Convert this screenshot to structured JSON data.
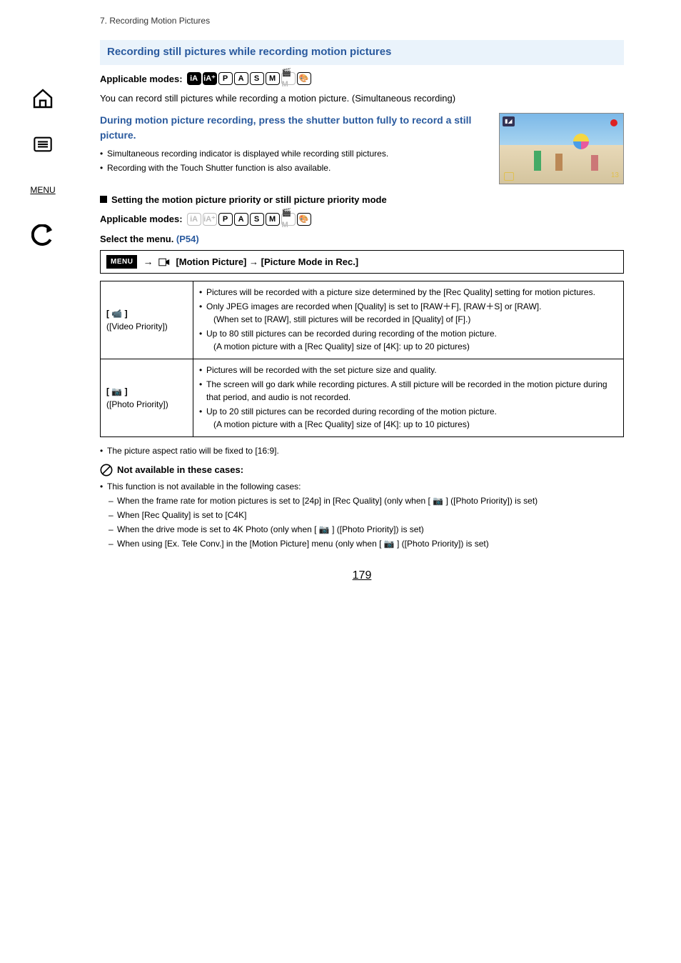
{
  "breadcrumb": "7. Recording Motion Pictures",
  "section_header": "Recording still pictures while recording motion pictures",
  "applicable_label": "Applicable modes:",
  "mode_icons_1": [
    {
      "label": "iA",
      "filled": true,
      "grey": false
    },
    {
      "label": "iA⁺",
      "filled": true,
      "grey": false
    },
    {
      "label": "P",
      "filled": false,
      "grey": false
    },
    {
      "label": "A",
      "filled": false,
      "grey": false
    },
    {
      "label": "S",
      "filled": false,
      "grey": false
    },
    {
      "label": "M",
      "filled": false,
      "grey": false
    },
    {
      "label": "🎬M",
      "filled": false,
      "grey": true
    },
    {
      "label": "🎨",
      "filled": false,
      "grey": false
    }
  ],
  "intro": "You can record still pictures while recording a motion picture. (Simultaneous recording)",
  "instruction_heading": "During motion picture recording, press the shutter button fully to record a still picture.",
  "instruction_bullets": [
    "Simultaneous recording indicator is displayed while recording still pictures.",
    "Recording with the Touch Shutter function is also available."
  ],
  "preview": {
    "counter": "13"
  },
  "subsection_title": "Setting the motion picture priority or still picture priority mode",
  "mode_icons_2": [
    {
      "label": "iA",
      "filled": false,
      "grey": true
    },
    {
      "label": "iA⁺",
      "filled": false,
      "grey": true
    },
    {
      "label": "P",
      "filled": false,
      "grey": false
    },
    {
      "label": "A",
      "filled": false,
      "grey": false
    },
    {
      "label": "S",
      "filled": false,
      "grey": false
    },
    {
      "label": "M",
      "filled": false,
      "grey": false
    },
    {
      "label": "🎬M",
      "filled": false,
      "grey": true
    },
    {
      "label": "🎨",
      "filled": false,
      "grey": false
    }
  ],
  "select_menu_prefix": "Select the menu. ",
  "select_menu_link": "(P54)",
  "menu_badge": "MENU",
  "menu_path": "[Motion Picture] → [Picture Mode in Rec.]",
  "priority_table": {
    "rows": [
      {
        "label_icon": "[ 📹 ]",
        "label_text": "([Video Priority])",
        "items": [
          {
            "text": "Pictures will be recorded with a picture size determined by the [Rec Quality] setting for motion pictures."
          },
          {
            "text": "Only JPEG images are recorded when [Quality] is set to [RAW＋F], [RAW＋S] or [RAW].",
            "sub": "(When set to [RAW], still pictures will be recorded in [Quality] of [F].)"
          },
          {
            "text": "Up to 80 still pictures can be recorded during recording of the motion picture.",
            "sub": "(A motion picture with a [Rec Quality] size of [4K]: up to 20 pictures)"
          }
        ]
      },
      {
        "label_icon": "[ 📷 ]",
        "label_text": "([Photo Priority])",
        "items": [
          {
            "text": "Pictures will be recorded with the set picture size and quality."
          },
          {
            "text": "The screen will go dark while recording pictures. A still picture will be recorded in the motion picture during that period, and audio is not recorded."
          },
          {
            "text": "Up to 20 still pictures can be recorded during recording of the motion picture.",
            "sub": "(A motion picture with a [Rec Quality] size of [4K]: up to 10 pictures)"
          }
        ]
      }
    ]
  },
  "aspect_note": "The picture aspect ratio will be fixed to [16:9].",
  "na_title": "Not available in these cases:",
  "na_intro": "This function is not available in the following cases:",
  "na_items": [
    "When the frame rate for motion pictures is set to [24p] in [Rec Quality] (only when [ 📷 ] ([Photo Priority]) is set)",
    "When [Rec Quality] is set to [C4K]",
    "When the drive mode is set to 4K Photo (only when [ 📷 ] ([Photo Priority]) is set)",
    "When using [Ex. Tele Conv.] in the [Motion Picture] menu (only when [ 📷 ] ([Photo Priority]) is set)"
  ],
  "page_number": "179"
}
